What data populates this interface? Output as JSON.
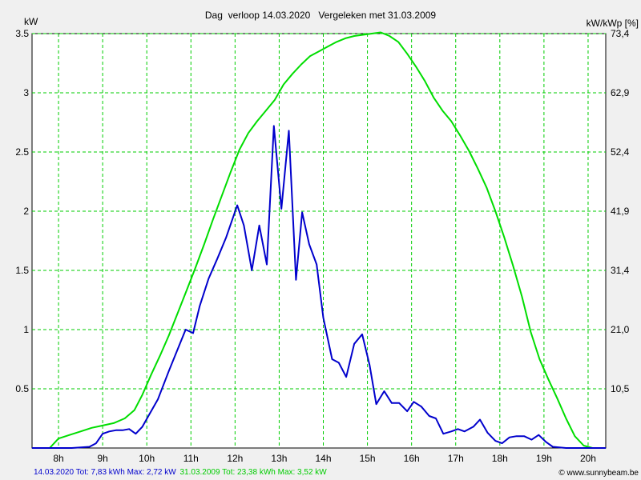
{
  "chart_data": {
    "type": "line",
    "title": "Dag  verloop 14.03.2020   Vergeleken met 31.03.2009",
    "ylabel_left": "kW",
    "ylabel_right": "kW/kWp [%]",
    "x_ticks": [
      "8h",
      "9h",
      "10h",
      "11h",
      "12h",
      "13h",
      "14h",
      "15h",
      "16h",
      "17h",
      "18h",
      "19h",
      "20h"
    ],
    "x_tick_values": [
      8,
      9,
      10,
      11,
      12,
      13,
      14,
      15,
      16,
      17,
      18,
      19,
      20
    ],
    "xlim": [
      7.4,
      20.4
    ],
    "ylim": [
      0,
      3.5
    ],
    "y_ticks": [
      "0.5",
      "1",
      "1.5",
      "2",
      "2.5",
      "3",
      "3.5"
    ],
    "y_tick_values": [
      0.5,
      1,
      1.5,
      2,
      2.5,
      3,
      3.5
    ],
    "y_right_ticks": [
      "10,5",
      "21,0",
      "31,4",
      "41,9",
      "52,4",
      "62,9",
      "73,4"
    ],
    "grid": true,
    "series": [
      {
        "name": "14.03.2020",
        "color": "#0000cc",
        "points": [
          [
            7.4,
            0
          ],
          [
            7.9,
            0
          ],
          [
            8.3,
            0
          ],
          [
            8.7,
            0.01
          ],
          [
            8.85,
            0.04
          ],
          [
            9.0,
            0.12
          ],
          [
            9.15,
            0.14
          ],
          [
            9.3,
            0.15
          ],
          [
            9.45,
            0.15
          ],
          [
            9.6,
            0.16
          ],
          [
            9.75,
            0.12
          ],
          [
            9.9,
            0.18
          ],
          [
            10.05,
            0.28
          ],
          [
            10.25,
            0.41
          ],
          [
            10.5,
            0.65
          ],
          [
            10.75,
            0.88
          ],
          [
            10.88,
            1.0
          ],
          [
            11.05,
            0.97
          ],
          [
            11.2,
            1.2
          ],
          [
            11.4,
            1.43
          ],
          [
            11.6,
            1.6
          ],
          [
            11.8,
            1.78
          ],
          [
            12.05,
            2.05
          ],
          [
            12.2,
            1.88
          ],
          [
            12.38,
            1.5
          ],
          [
            12.55,
            1.88
          ],
          [
            12.72,
            1.55
          ],
          [
            12.88,
            2.72
          ],
          [
            13.05,
            2.02
          ],
          [
            13.22,
            2.68
          ],
          [
            13.38,
            1.42
          ],
          [
            13.52,
            1.99
          ],
          [
            13.68,
            1.72
          ],
          [
            13.85,
            1.55
          ],
          [
            14.0,
            1.1
          ],
          [
            14.2,
            0.75
          ],
          [
            14.35,
            0.72
          ],
          [
            14.52,
            0.6
          ],
          [
            14.7,
            0.88
          ],
          [
            14.88,
            0.96
          ],
          [
            15.05,
            0.7
          ],
          [
            15.2,
            0.37
          ],
          [
            15.38,
            0.48
          ],
          [
            15.55,
            0.38
          ],
          [
            15.72,
            0.38
          ],
          [
            15.9,
            0.31
          ],
          [
            16.05,
            0.39
          ],
          [
            16.22,
            0.35
          ],
          [
            16.4,
            0.27
          ],
          [
            16.55,
            0.25
          ],
          [
            16.72,
            0.12
          ],
          [
            16.9,
            0.14
          ],
          [
            17.05,
            0.16
          ],
          [
            17.2,
            0.14
          ],
          [
            17.4,
            0.18
          ],
          [
            17.55,
            0.24
          ],
          [
            17.72,
            0.13
          ],
          [
            17.9,
            0.06
          ],
          [
            18.05,
            0.04
          ],
          [
            18.22,
            0.09
          ],
          [
            18.38,
            0.1
          ],
          [
            18.55,
            0.1
          ],
          [
            18.72,
            0.07
          ],
          [
            18.88,
            0.11
          ],
          [
            19.05,
            0.05
          ],
          [
            19.2,
            0.01
          ],
          [
            19.5,
            0
          ],
          [
            20.4,
            0
          ]
        ]
      },
      {
        "name": "31.03.2009",
        "color": "#00dd00",
        "points": [
          [
            7.4,
            0
          ],
          [
            7.8,
            0
          ],
          [
            8.0,
            0.08
          ],
          [
            8.25,
            0.11
          ],
          [
            8.5,
            0.14
          ],
          [
            8.75,
            0.17
          ],
          [
            9.0,
            0.19
          ],
          [
            9.25,
            0.21
          ],
          [
            9.5,
            0.25
          ],
          [
            9.72,
            0.32
          ],
          [
            9.9,
            0.45
          ],
          [
            10.1,
            0.62
          ],
          [
            10.3,
            0.78
          ],
          [
            10.5,
            0.95
          ],
          [
            10.7,
            1.14
          ],
          [
            10.9,
            1.33
          ],
          [
            11.1,
            1.52
          ],
          [
            11.3,
            1.72
          ],
          [
            11.5,
            1.93
          ],
          [
            11.7,
            2.13
          ],
          [
            11.9,
            2.33
          ],
          [
            12.1,
            2.52
          ],
          [
            12.3,
            2.66
          ],
          [
            12.5,
            2.76
          ],
          [
            12.7,
            2.85
          ],
          [
            12.9,
            2.94
          ],
          [
            13.1,
            3.07
          ],
          [
            13.3,
            3.16
          ],
          [
            13.5,
            3.24
          ],
          [
            13.7,
            3.31
          ],
          [
            13.9,
            3.35
          ],
          [
            14.1,
            3.39
          ],
          [
            14.3,
            3.43
          ],
          [
            14.5,
            3.46
          ],
          [
            14.7,
            3.48
          ],
          [
            14.9,
            3.49
          ],
          [
            15.1,
            3.5
          ],
          [
            15.3,
            3.51
          ],
          [
            15.5,
            3.48
          ],
          [
            15.7,
            3.43
          ],
          [
            15.9,
            3.33
          ],
          [
            16.1,
            3.22
          ],
          [
            16.3,
            3.1
          ],
          [
            16.5,
            2.96
          ],
          [
            16.7,
            2.85
          ],
          [
            16.9,
            2.76
          ],
          [
            17.1,
            2.64
          ],
          [
            17.3,
            2.51
          ],
          [
            17.5,
            2.36
          ],
          [
            17.7,
            2.2
          ],
          [
            17.9,
            2.0
          ],
          [
            18.1,
            1.78
          ],
          [
            18.3,
            1.54
          ],
          [
            18.5,
            1.28
          ],
          [
            18.7,
            0.98
          ],
          [
            18.9,
            0.75
          ],
          [
            19.1,
            0.58
          ],
          [
            19.3,
            0.42
          ],
          [
            19.5,
            0.25
          ],
          [
            19.7,
            0.1
          ],
          [
            19.9,
            0.02
          ],
          [
            20.1,
            0
          ],
          [
            20.4,
            0
          ]
        ]
      }
    ]
  },
  "footer": {
    "series1_text": "14.03.2020 Tot: 7,83 kWh Max: 2,72 kW",
    "series2_text": "31.03.2009 Tot: 23,38 kWh Max: 3,52 kW",
    "credit": "© www.sunnybeam.be"
  }
}
